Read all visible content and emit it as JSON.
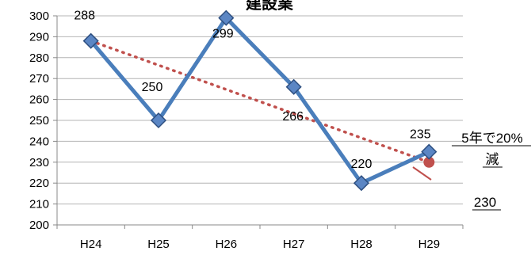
{
  "chart_data": {
    "type": "line",
    "title": "建設業",
    "categories": [
      "H24",
      "H25",
      "H26",
      "H27",
      "H28",
      "H29"
    ],
    "series": [
      {
        "values": [
          288,
          250,
          299,
          266,
          220,
          235
        ],
        "color": "#4A7EBB",
        "marker": "diamond"
      }
    ],
    "trend": {
      "start_value": 288,
      "end_value": 230,
      "color": "#C0504D",
      "style": "dotted"
    },
    "yticks": [
      "300",
      "290",
      "280",
      "270",
      "260",
      "250",
      "240",
      "230",
      "220",
      "210",
      "200"
    ],
    "ylim": [
      200,
      300
    ],
    "data_labels": [
      "288",
      "250",
      "299",
      "266",
      "220",
      "235"
    ],
    "grid": true,
    "annotation": {
      "line1": "5年で20%",
      "line2": "減",
      "value": "230"
    }
  }
}
